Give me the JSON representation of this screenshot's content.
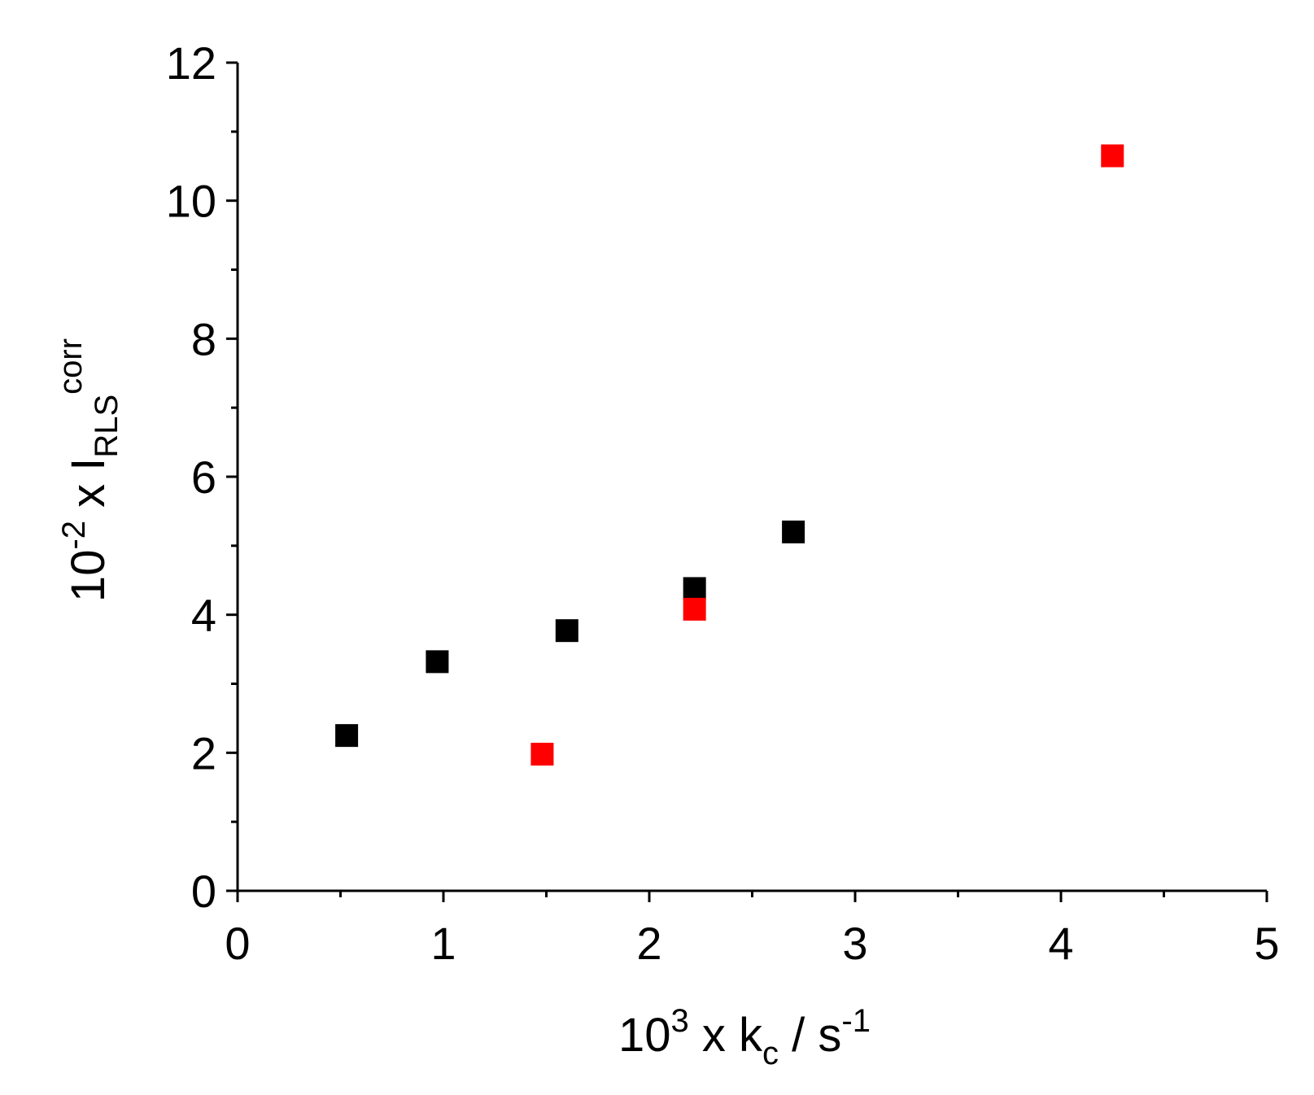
{
  "chart_data": {
    "type": "scatter",
    "xlabel": {
      "prefix": "10",
      "prefix_sup": "3",
      "mid": " x k",
      "sub": "c",
      "unit": " / s",
      "unit_sup": "-1"
    },
    "ylabel": {
      "prefix": "10",
      "prefix_sup": "-2",
      "mid": " x I",
      "sub": "RLS",
      "sup": "corr"
    },
    "xlim": [
      0,
      5
    ],
    "ylim": [
      0,
      12
    ],
    "x_ticks": [
      0,
      1,
      2,
      3,
      4,
      5
    ],
    "y_ticks": [
      0,
      2,
      4,
      6,
      8,
      10,
      12
    ],
    "x_tick_labels": [
      "0",
      "1",
      "2",
      "3",
      "4",
      "5"
    ],
    "y_tick_labels": [
      "0",
      "2",
      "4",
      "6",
      "8",
      "10",
      "12"
    ],
    "grid": false,
    "legend": "none",
    "series": [
      {
        "color": "#000000",
        "marker": "square",
        "points": [
          {
            "x": 0.53,
            "y": 2.25
          },
          {
            "x": 0.97,
            "y": 3.32
          },
          {
            "x": 1.6,
            "y": 3.77
          },
          {
            "x": 2.22,
            "y": 4.38
          },
          {
            "x": 2.7,
            "y": 5.2
          }
        ]
      },
      {
        "color": "#ff0000",
        "marker": "square",
        "points": [
          {
            "x": 1.48,
            "y": 1.98
          },
          {
            "x": 2.22,
            "y": 4.08
          },
          {
            "x": 4.25,
            "y": 10.65
          }
        ]
      }
    ]
  }
}
